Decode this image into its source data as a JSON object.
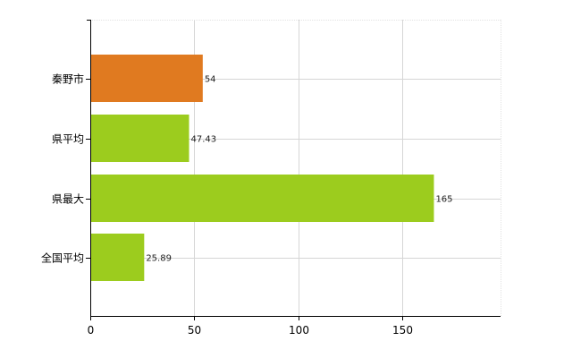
{
  "chart_data": {
    "type": "bar",
    "orientation": "horizontal",
    "categories": [
      "秦野市",
      "県平均",
      "県最大",
      "全国平均"
    ],
    "values": [
      54,
      47.43,
      165,
      25.89
    ],
    "data_labels": [
      "54",
      "47.43",
      "165",
      "25.89"
    ],
    "bar_colors": [
      "#e07a20",
      "#9ccc1e",
      "#9ccc1e",
      "#9ccc1e"
    ],
    "xlim": [
      0,
      197
    ],
    "x_ticks": [
      0,
      50,
      100,
      150
    ],
    "x_tick_labels": [
      "0",
      "50",
      "100",
      "150"
    ],
    "grid": true,
    "title": "",
    "xlabel": "",
    "ylabel": ""
  }
}
